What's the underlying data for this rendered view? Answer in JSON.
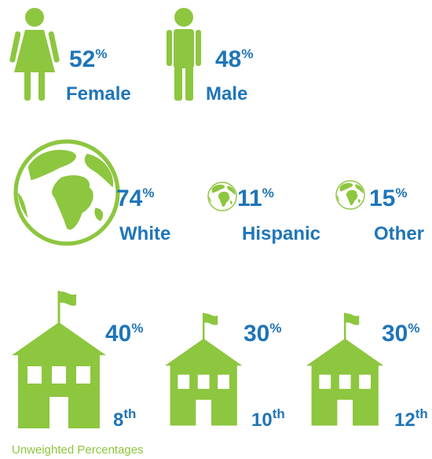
{
  "gender": [
    {
      "value": 52,
      "symbol": "%",
      "label": "Female"
    },
    {
      "value": 48,
      "symbol": "%",
      "label": "Male"
    }
  ],
  "race": [
    {
      "value": 74,
      "symbol": "%",
      "label": "White"
    },
    {
      "value": 11,
      "symbol": "%",
      "label": "Hispanic"
    },
    {
      "value": 15,
      "symbol": "%",
      "label": "Other"
    }
  ],
  "grade": [
    {
      "value": 40,
      "symbol": "%",
      "number": "8",
      "suffix": "th"
    },
    {
      "value": 30,
      "symbol": "%",
      "number": "10",
      "suffix": "th"
    },
    {
      "value": 30,
      "symbol": "%",
      "number": "12",
      "suffix": "th"
    }
  ],
  "note": "Unweighted Percentages"
}
